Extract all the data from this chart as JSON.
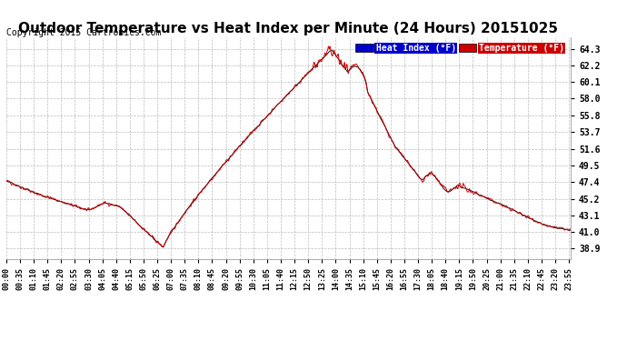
{
  "title": "Outdoor Temperature vs Heat Index per Minute (24 Hours) 20151025",
  "copyright": "Copyright 2015 Cartronics.com",
  "legend_heat_index": "Heat Index (°F)",
  "legend_temperature": "Temperature (°F)",
  "legend_heat_index_bg": "#0000cc",
  "legend_temperature_bg": "#cc0000",
  "line_color_temperature": "#cc0000",
  "line_color_heat_index": "#111111",
  "yticks": [
    38.9,
    41.0,
    43.1,
    45.2,
    47.4,
    49.5,
    51.6,
    53.7,
    55.8,
    58.0,
    60.1,
    62.2,
    64.3
  ],
  "ymin": 37.5,
  "ymax": 65.8,
  "background_color": "#ffffff",
  "grid_color": "#bbbbbb",
  "title_fontsize": 11,
  "copyright_fontsize": 7,
  "xtick_labels": [
    "00:00",
    "00:35",
    "01:10",
    "01:45",
    "02:20",
    "02:55",
    "03:30",
    "04:05",
    "04:40",
    "05:15",
    "05:50",
    "06:25",
    "07:00",
    "07:35",
    "08:10",
    "08:45",
    "09:20",
    "09:55",
    "10:30",
    "11:05",
    "11:40",
    "12:15",
    "12:50",
    "13:25",
    "14:00",
    "14:35",
    "15:10",
    "15:45",
    "16:20",
    "16:55",
    "17:30",
    "18:05",
    "18:40",
    "19:15",
    "19:50",
    "20:25",
    "21:00",
    "21:35",
    "22:10",
    "22:45",
    "23:20",
    "23:55"
  ]
}
